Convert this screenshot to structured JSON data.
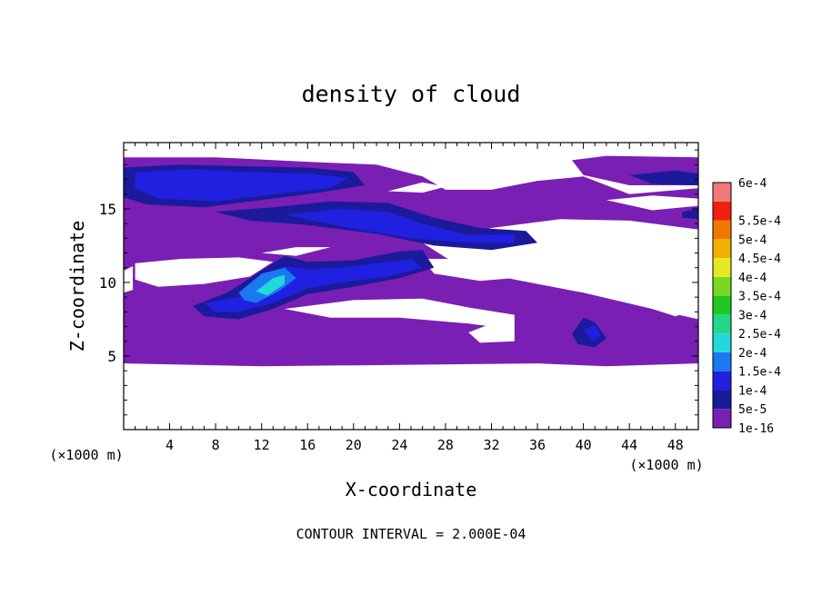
{
  "chart_data": {
    "type": "heatmap",
    "title": "density of cloud",
    "xlabel": "X-coordinate",
    "ylabel": "Z-coordinate",
    "x_unit_left": "(×1000 m)",
    "x_unit_right": "(×1000 m)",
    "footer": "CONTOUR INTERVAL = 2.000E-04",
    "xlim": [
      0,
      50
    ],
    "ylim": [
      0,
      19.5
    ],
    "xticks": [
      4,
      8,
      12,
      16,
      20,
      24,
      28,
      32,
      36,
      40,
      44,
      48
    ],
    "yticks": [
      5,
      10,
      15
    ],
    "legend": {
      "position": "right",
      "levels": [
        {
          "label": "1e-16",
          "color": "#7a1fb4"
        },
        {
          "label": "5e-5",
          "color": "#1a1a9a"
        },
        {
          "label": "1e-4",
          "color": "#2020e0"
        },
        {
          "label": "1.5e-4",
          "color": "#1a78f0"
        },
        {
          "label": "2e-4",
          "color": "#22d8d8"
        },
        {
          "label": "2.5e-4",
          "color": "#22d888"
        },
        {
          "label": "3e-4",
          "color": "#22c822"
        },
        {
          "label": "3.5e-4",
          "color": "#78d822"
        },
        {
          "label": "4e-4",
          "color": "#e8e822"
        },
        {
          "label": "4.5e-4",
          "color": "#f0b000"
        },
        {
          "label": "5e-4",
          "color": "#f07800"
        },
        {
          "label": "5.5e-4",
          "color": "#f02010"
        },
        {
          "label": "6e-4",
          "color": "#f07878"
        }
      ]
    },
    "regions": [
      {
        "level": 0,
        "points": [
          [
            0,
            4.5
          ],
          [
            12,
            4.3
          ],
          [
            24,
            4.4
          ],
          [
            36,
            4.5
          ],
          [
            42,
            4.3
          ],
          [
            50,
            4.5
          ],
          [
            50,
            7.5
          ],
          [
            46,
            8.2
          ],
          [
            40,
            9.3
          ],
          [
            34,
            10.2
          ],
          [
            30,
            10.9
          ],
          [
            28,
            11.7
          ],
          [
            26,
            12.7
          ],
          [
            32,
            13.7
          ],
          [
            38,
            14.3
          ],
          [
            44,
            14.2
          ],
          [
            50,
            13.6
          ],
          [
            50,
            16.4
          ],
          [
            44,
            16.0
          ],
          [
            40,
            17.2
          ],
          [
            36,
            16.9
          ],
          [
            32,
            16.3
          ],
          [
            28,
            16.3
          ],
          [
            26,
            17.2
          ],
          [
            22,
            18.0
          ],
          [
            16,
            18.2
          ],
          [
            8,
            18.5
          ],
          [
            0,
            18.5
          ]
        ]
      },
      {
        "level": 0,
        "points": [
          [
            39,
            18.3
          ],
          [
            42,
            18.6
          ],
          [
            50,
            18.5
          ],
          [
            50,
            16.6
          ],
          [
            44,
            16.6
          ],
          [
            40,
            17.3
          ]
        ]
      },
      {
        "level": 0,
        "points": [
          [
            46,
            15.2
          ],
          [
            50,
            15.6
          ],
          [
            50,
            13.8
          ],
          [
            46,
            14.6
          ]
        ]
      },
      {
        "level": 1,
        "points": [
          [
            0,
            17.8
          ],
          [
            5,
            18.0
          ],
          [
            10,
            17.9
          ],
          [
            16,
            17.8
          ],
          [
            20,
            17.5
          ],
          [
            21,
            16.6
          ],
          [
            17,
            16.1
          ],
          [
            12,
            15.6
          ],
          [
            7,
            15.1
          ],
          [
            2,
            15.3
          ],
          [
            0,
            15.8
          ]
        ]
      },
      {
        "level": 2,
        "points": [
          [
            1,
            17.5
          ],
          [
            6,
            17.7
          ],
          [
            11,
            17.5
          ],
          [
            16,
            17.4
          ],
          [
            19.5,
            17.1
          ],
          [
            18,
            16.4
          ],
          [
            13,
            16.0
          ],
          [
            8,
            15.5
          ],
          [
            3,
            15.7
          ],
          [
            1,
            16.4
          ]
        ]
      },
      {
        "level": 1,
        "points": [
          [
            8,
            14.8
          ],
          [
            13,
            15.1
          ],
          [
            18,
            15.5
          ],
          [
            23,
            15.4
          ],
          [
            27,
            14.4
          ],
          [
            31,
            13.7
          ],
          [
            35,
            13.5
          ],
          [
            36,
            12.7
          ],
          [
            32,
            12.2
          ],
          [
            27,
            12.5
          ],
          [
            22,
            13.3
          ],
          [
            16,
            13.9
          ],
          [
            11,
            14.2
          ]
        ]
      },
      {
        "level": 2,
        "points": [
          [
            14,
            14.6
          ],
          [
            19,
            15.0
          ],
          [
            23,
            14.8
          ],
          [
            26,
            14.0
          ],
          [
            30,
            13.2
          ],
          [
            34,
            13.3
          ],
          [
            34,
            12.7
          ],
          [
            30,
            12.7
          ],
          [
            25,
            13.0
          ],
          [
            19,
            13.8
          ]
        ]
      },
      {
        "level": 1,
        "points": [
          [
            6,
            8.4
          ],
          [
            9,
            9.3
          ],
          [
            12,
            10.8
          ],
          [
            14,
            11.8
          ],
          [
            16,
            11.4
          ],
          [
            20,
            11.5
          ],
          [
            24,
            12.1
          ],
          [
            26,
            12.2
          ],
          [
            27,
            11.0
          ],
          [
            24,
            10.3
          ],
          [
            20,
            9.7
          ],
          [
            16,
            9.2
          ],
          [
            13,
            8.2
          ],
          [
            10,
            7.5
          ],
          [
            7,
            7.7
          ]
        ]
      },
      {
        "level": 2,
        "points": [
          [
            7,
            8.6
          ],
          [
            10,
            9.0
          ],
          [
            12,
            10.2
          ],
          [
            14,
            11.1
          ],
          [
            16,
            10.9
          ],
          [
            19,
            11.0
          ],
          [
            22,
            11.3
          ],
          [
            25,
            11.6
          ],
          [
            26,
            11.0
          ],
          [
            23,
            10.4
          ],
          [
            19,
            10.0
          ],
          [
            16,
            9.6
          ],
          [
            13,
            8.6
          ],
          [
            10,
            8.0
          ],
          [
            8,
            8.0
          ]
        ]
      },
      {
        "level": 3,
        "points": [
          [
            10,
            9.3
          ],
          [
            12,
            10.6
          ],
          [
            14,
            11.0
          ],
          [
            15,
            10.3
          ],
          [
            13.5,
            9.4
          ],
          [
            11.5,
            8.6
          ],
          [
            10.5,
            8.8
          ]
        ]
      },
      {
        "level": 4,
        "points": [
          [
            11.5,
            9.4
          ],
          [
            13,
            10.3
          ],
          [
            14,
            10.5
          ],
          [
            14,
            9.9
          ],
          [
            12.5,
            9.1
          ]
        ]
      },
      {
        "level": 1,
        "points": [
          [
            39,
            6.5
          ],
          [
            40,
            7.6
          ],
          [
            41,
            7.3
          ],
          [
            42,
            6.2
          ],
          [
            41,
            5.6
          ],
          [
            39.5,
            5.8
          ]
        ]
      },
      {
        "level": 2,
        "points": [
          [
            40,
            6.8
          ],
          [
            41,
            7.1
          ],
          [
            41.5,
            6.4
          ],
          [
            40.8,
            6.0
          ]
        ]
      },
      {
        "level": 1,
        "points": [
          [
            44,
            17.3
          ],
          [
            48,
            17.6
          ],
          [
            50,
            17.4
          ],
          [
            50,
            16.6
          ],
          [
            46,
            16.7
          ]
        ]
      },
      {
        "level": 1,
        "points": [
          [
            48.6,
            14.8
          ],
          [
            50,
            15.0
          ],
          [
            50,
            14.3
          ],
          [
            48.6,
            14.4
          ]
        ]
      }
    ],
    "gaps": [
      [
        [
          1,
          11.3
        ],
        [
          5,
          11.6
        ],
        [
          10,
          11.7
        ],
        [
          13,
          11.4
        ],
        [
          11,
          10.4
        ],
        [
          7,
          9.9
        ],
        [
          3,
          9.7
        ],
        [
          1,
          10.2
        ]
      ],
      [
        [
          0,
          10.8
        ],
        [
          0.8,
          11.1
        ],
        [
          0.8,
          9.5
        ],
        [
          0,
          9.3
        ]
      ],
      [
        [
          14,
          8.2
        ],
        [
          20,
          8.8
        ],
        [
          26,
          8.9
        ],
        [
          30,
          8.3
        ],
        [
          34,
          7.8
        ],
        [
          34,
          6.8
        ],
        [
          30,
          7.2
        ],
        [
          24,
          7.6
        ],
        [
          18,
          7.6
        ]
      ],
      [
        [
          30,
          6.6
        ],
        [
          32,
          7.2
        ],
        [
          34,
          7.0
        ],
        [
          34,
          6.0
        ],
        [
          31,
          5.9
        ]
      ],
      [
        [
          26,
          11.6
        ],
        [
          30,
          11.6
        ],
        [
          33,
          11.1
        ],
        [
          34,
          10.3
        ],
        [
          31,
          10.1
        ],
        [
          27,
          10.6
        ]
      ],
      [
        [
          12,
          12.0
        ],
        [
          15,
          12.4
        ],
        [
          18,
          12.4
        ],
        [
          15,
          11.8
        ]
      ],
      [
        [
          40,
          10.1
        ],
        [
          44,
          10.6
        ],
        [
          48,
          10.1
        ],
        [
          46,
          9.6
        ],
        [
          42,
          9.6
        ]
      ],
      [
        [
          46,
          8.2
        ],
        [
          48.5,
          8.5
        ],
        [
          50,
          8.2
        ],
        [
          48,
          7.7
        ]
      ],
      [
        [
          42,
          15.6
        ],
        [
          46,
          15.9
        ],
        [
          50,
          15.7
        ],
        [
          50,
          15.2
        ],
        [
          46,
          14.9
        ]
      ],
      [
        [
          23,
          16.2
        ],
        [
          26,
          16.8
        ],
        [
          28,
          16.5
        ],
        [
          26,
          16.1
        ]
      ]
    ]
  }
}
